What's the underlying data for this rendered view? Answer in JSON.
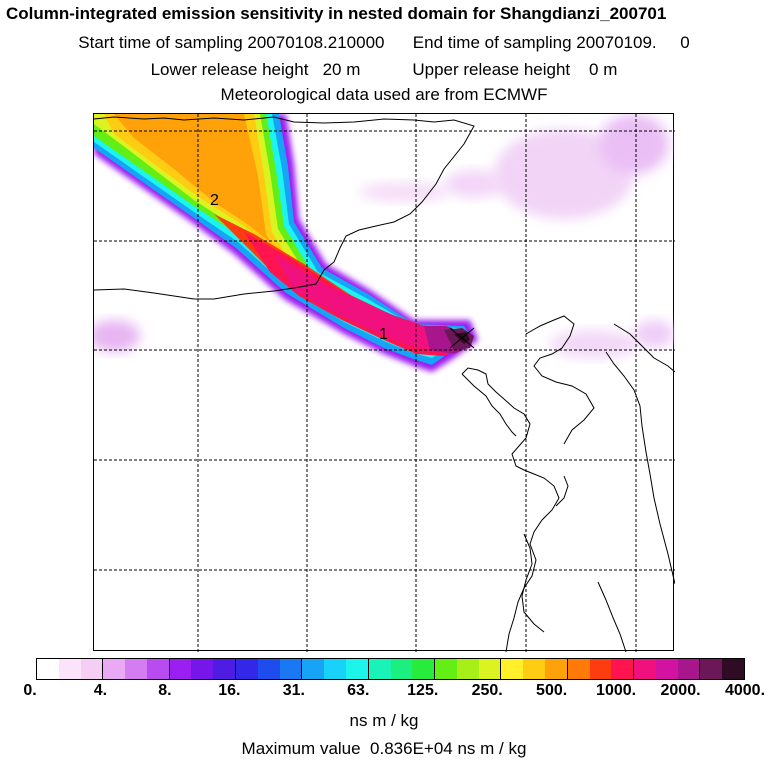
{
  "header": {
    "title": "Column-integrated emission sensitivity in nested domain for Shangdianzi_200701",
    "line2": "Start time of sampling 20070108.210000      End time of sampling 20070109.     0",
    "line3": "Lower release height   20 m           Upper release height    0 m",
    "line4": "Meteorological data used are from ECMWF"
  },
  "map": {
    "point_labels": [
      "1",
      "2"
    ]
  },
  "colorbar": {
    "colors": [
      "#ffffff",
      "#fbe3fb",
      "#f5cdf5",
      "#e9a9f4",
      "#d47cf2",
      "#b94cf0",
      "#9b1ff0",
      "#7616ea",
      "#4f1ce4",
      "#3328e8",
      "#1e4cef",
      "#1a78f3",
      "#17a4f6",
      "#19d2f9",
      "#1cf4ec",
      "#1af3b8",
      "#1aef80",
      "#27ec3c",
      "#63ee16",
      "#a8ef1a",
      "#dbf421",
      "#fff02a",
      "#ffcc14",
      "#ffa20a",
      "#ff7a08",
      "#ff3c10",
      "#ff1450",
      "#f0107e",
      "#d412a2",
      "#a8168e",
      "#6b1758",
      "#2f0c24"
    ],
    "ticks": [
      "0.",
      "4.",
      "8.",
      "16.",
      "31.",
      "63.",
      "125.",
      "250.",
      "500.",
      "1000.",
      "2000.",
      "4000."
    ],
    "units": "ns m / kg"
  },
  "footer": {
    "max_value": "Maximum value  0.836E+04 ns m / kg"
  }
}
